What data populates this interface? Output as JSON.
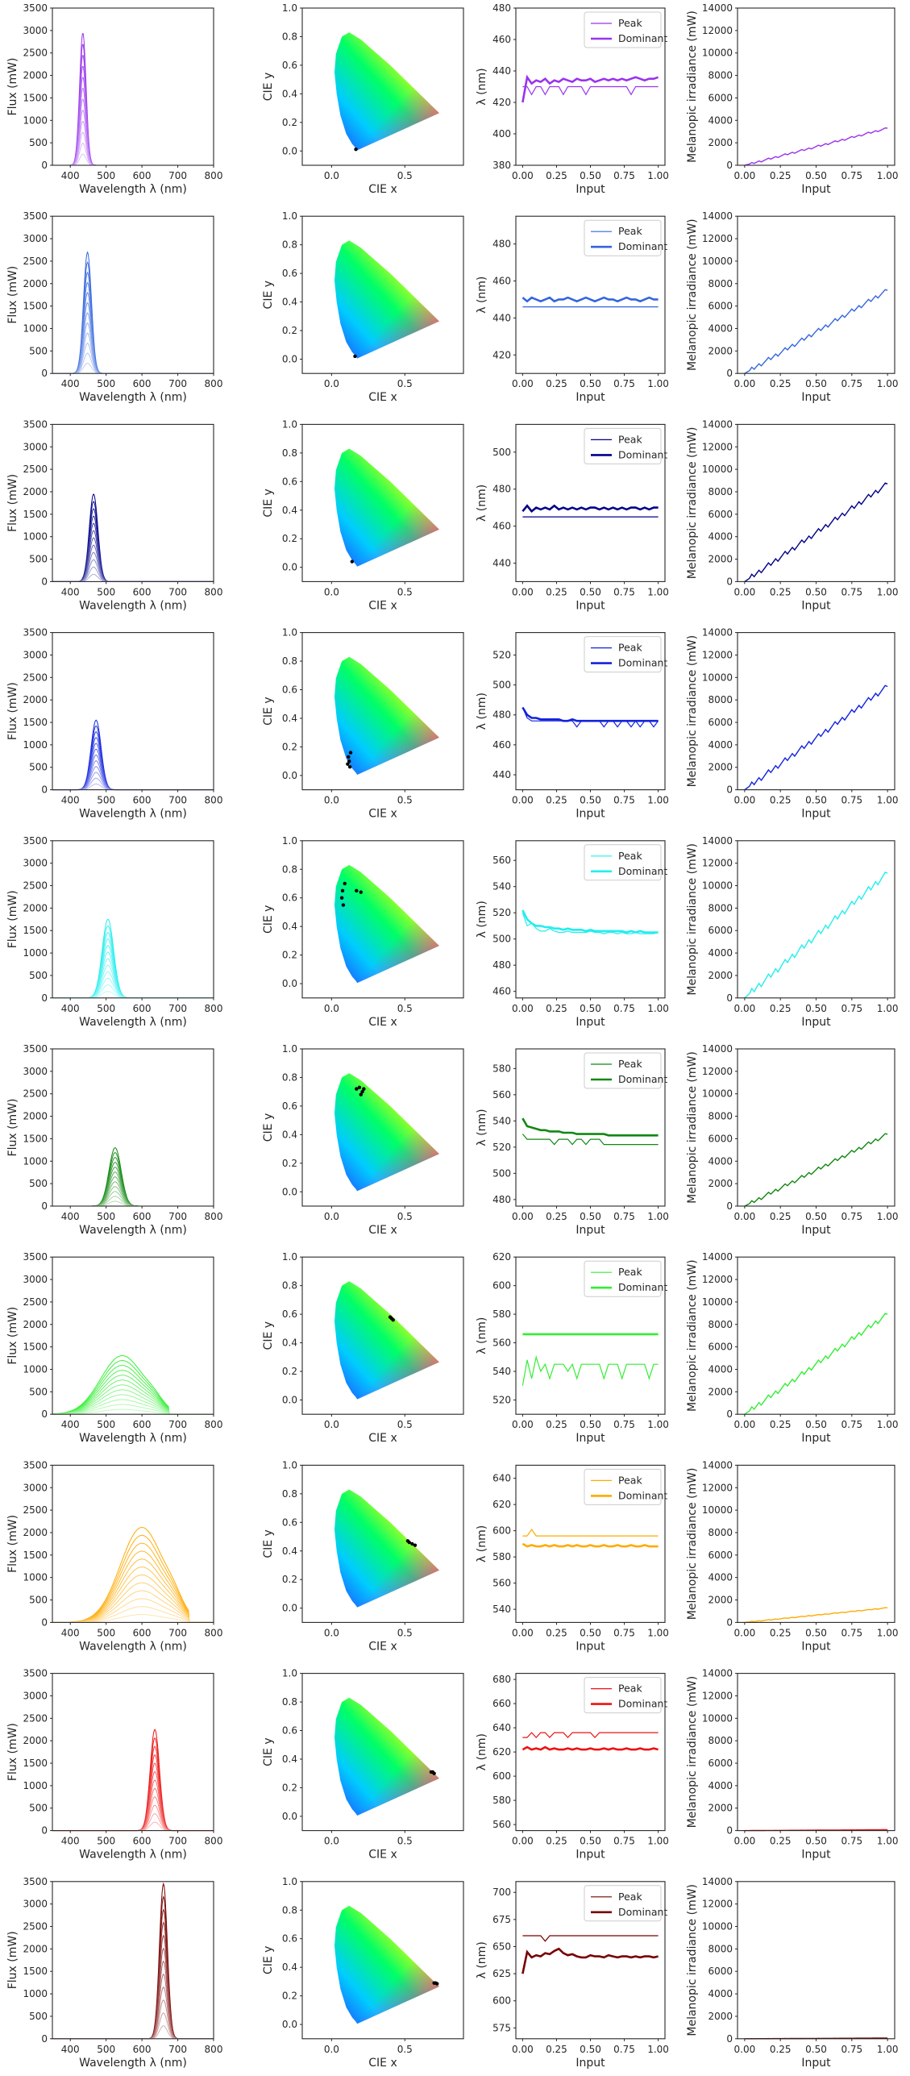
{
  "chart_data": {
    "type": "line",
    "rows": [
      {
        "color": "#9933ee",
        "peak_nm": 435,
        "width_nm": 9,
        "flux_max": 2950,
        "cie": [
          [
            0.166,
            0.012
          ]
        ],
        "peak_series": [
          430,
          430,
          425,
          430,
          430,
          425,
          430,
          430,
          430,
          425,
          430,
          430,
          430,
          430,
          425,
          430,
          430,
          430,
          430,
          430,
          430,
          430,
          430,
          430,
          425,
          430,
          430,
          430,
          430,
          430,
          430
        ],
        "dominant_series": [
          420,
          436,
          432,
          434,
          433,
          435,
          432,
          434,
          433,
          435,
          434,
          433,
          435,
          434,
          434,
          435,
          433,
          434,
          435,
          434,
          435,
          434,
          435,
          434,
          435,
          436,
          435,
          434,
          435,
          435,
          436
        ],
        "mel_end": 3300
      },
      {
        "color": "#3366dd",
        "peak_nm": 448,
        "width_nm": 11,
        "flux_max": 2700,
        "cie": [
          [
            0.16,
            0.02
          ]
        ],
        "peak_series": [
          446,
          446,
          446,
          446,
          446,
          446,
          446,
          446,
          446,
          446,
          446,
          446,
          446,
          446,
          446,
          446,
          446,
          446,
          446,
          446,
          446,
          446,
          446,
          446,
          446,
          446,
          446,
          446,
          446,
          446,
          446
        ],
        "dominant_series": [
          451,
          449,
          451,
          450,
          449,
          450,
          451,
          449,
          450,
          450,
          451,
          450,
          449,
          450,
          451,
          450,
          449,
          450,
          451,
          450,
          450,
          449,
          450,
          451,
          450,
          450,
          449,
          450,
          451,
          450,
          450
        ],
        "mel_end": 7400
      },
      {
        "color": "#000088",
        "peak_nm": 465,
        "width_nm": 12,
        "flux_max": 1950,
        "cie": [
          [
            0.14,
            0.04
          ]
        ],
        "peak_series": [
          465,
          465,
          465,
          465,
          465,
          465,
          465,
          465,
          465,
          465,
          465,
          465,
          465,
          465,
          465,
          465,
          465,
          465,
          465,
          465,
          465,
          465,
          465,
          465,
          465,
          465,
          465,
          465,
          465,
          465,
          465
        ],
        "dominant_series": [
          468,
          471,
          468,
          470,
          469,
          470,
          469,
          471,
          469,
          470,
          469,
          470,
          469,
          470,
          469,
          470,
          470,
          469,
          470,
          469,
          470,
          469,
          470,
          469,
          470,
          470,
          469,
          470,
          469,
          470,
          470
        ],
        "mel_end": 8700
      },
      {
        "color": "#1122dd",
        "peak_nm": 472,
        "width_nm": 14,
        "flux_max": 1550,
        "cie": [
          [
            0.11,
            0.08
          ],
          [
            0.12,
            0.1
          ],
          [
            0.115,
            0.13
          ],
          [
            0.13,
            0.16
          ],
          [
            0.125,
            0.06
          ]
        ],
        "peak_series": [
          485,
          478,
          476,
          476,
          476,
          476,
          476,
          476,
          476,
          476,
          476,
          476,
          472,
          476,
          476,
          476,
          476,
          476,
          472,
          476,
          476,
          472,
          476,
          476,
          472,
          476,
          472,
          476,
          476,
          472,
          476
        ],
        "dominant_series": [
          485,
          480,
          478,
          478,
          477,
          477,
          477,
          477,
          477,
          476,
          476,
          477,
          476,
          476,
          476,
          476,
          476,
          476,
          476,
          476,
          476,
          476,
          476,
          476,
          476,
          476,
          476,
          476,
          476,
          476,
          476
        ],
        "mel_end": 9200
      },
      {
        "color": "#22eeee",
        "peak_nm": 505,
        "width_nm": 16,
        "flux_max": 1750,
        "cie": [
          [
            0.07,
            0.6
          ],
          [
            0.075,
            0.65
          ],
          [
            0.08,
            0.55
          ],
          [
            0.09,
            0.7
          ],
          [
            0.17,
            0.65
          ],
          [
            0.2,
            0.64
          ]
        ],
        "peak_series": [
          520,
          510,
          512,
          508,
          506,
          506,
          508,
          506,
          505,
          505,
          506,
          505,
          505,
          505,
          505,
          506,
          505,
          505,
          504,
          505,
          505,
          504,
          505,
          504,
          504,
          505,
          504,
          504,
          504,
          504,
          505
        ],
        "dominant_series": [
          522,
          515,
          512,
          510,
          510,
          509,
          509,
          508,
          508,
          507,
          508,
          507,
          507,
          507,
          506,
          507,
          506,
          506,
          506,
          506,
          506,
          506,
          506,
          505,
          506,
          505,
          506,
          505,
          505,
          505,
          505
        ],
        "mel_end": 11100
      },
      {
        "color": "#118811",
        "peak_nm": 525,
        "width_nm": 17,
        "flux_max": 1300,
        "cie": [
          [
            0.17,
            0.72
          ],
          [
            0.19,
            0.73
          ],
          [
            0.21,
            0.7
          ],
          [
            0.22,
            0.72
          ],
          [
            0.2,
            0.68
          ]
        ],
        "peak_series": [
          530,
          526,
          526,
          526,
          526,
          526,
          526,
          522,
          526,
          526,
          526,
          522,
          526,
          526,
          522,
          526,
          526,
          526,
          522,
          522,
          522,
          522,
          522,
          522,
          522,
          522,
          522,
          522,
          522,
          522,
          522
        ],
        "dominant_series": [
          542,
          536,
          535,
          534,
          533,
          533,
          532,
          532,
          532,
          531,
          531,
          531,
          530,
          530,
          530,
          530,
          530,
          530,
          530,
          529,
          529,
          529,
          529,
          529,
          529,
          529,
          529,
          529,
          529,
          529,
          529
        ],
        "mel_end": 6400
      },
      {
        "color": "#33ee33",
        "peak_nm": 545,
        "width_nm": 60,
        "flux_max": 1450,
        "cie": [
          [
            0.4,
            0.58
          ],
          [
            0.41,
            0.57
          ],
          [
            0.42,
            0.56
          ]
        ],
        "peak_series": [
          530,
          548,
          535,
          550,
          540,
          545,
          535,
          545,
          545,
          545,
          540,
          545,
          535,
          545,
          545,
          545,
          545,
          545,
          535,
          545,
          545,
          545,
          535,
          545,
          545,
          545,
          545,
          545,
          535,
          545,
          545
        ],
        "dominant_series": [
          566,
          566,
          566,
          566,
          566,
          566,
          566,
          566,
          566,
          566,
          566,
          566,
          566,
          566,
          566,
          566,
          566,
          566,
          566,
          566,
          566,
          566,
          566,
          566,
          566,
          566,
          566,
          566,
          566,
          566,
          566
        ],
        "mel_end": 8900
      },
      {
        "color": "#ffaa00",
        "peak_nm": 600,
        "width_nm": 60,
        "flux_max": 2350,
        "cie": [
          [
            0.53,
            0.46
          ],
          [
            0.55,
            0.45
          ],
          [
            0.57,
            0.44
          ],
          [
            0.52,
            0.47
          ]
        ],
        "peak_series": [
          596,
          596,
          601,
          596,
          596,
          596,
          596,
          596,
          596,
          596,
          596,
          596,
          596,
          596,
          596,
          596,
          596,
          596,
          596,
          596,
          596,
          596,
          596,
          596,
          596,
          596,
          596,
          596,
          596,
          596,
          596
        ],
        "dominant_series": [
          590,
          588,
          589,
          588,
          588,
          589,
          588,
          589,
          588,
          588,
          589,
          588,
          589,
          588,
          588,
          589,
          588,
          588,
          589,
          588,
          588,
          589,
          588,
          588,
          589,
          588,
          588,
          589,
          588,
          588,
          588
        ],
        "mel_end": 1300
      },
      {
        "color": "#ee1111",
        "peak_nm": 636,
        "width_nm": 13,
        "flux_max": 2250,
        "cie": [
          [
            0.69,
            0.31
          ],
          [
            0.7,
            0.3
          ],
          [
            0.68,
            0.31
          ]
        ],
        "peak_series": [
          632,
          632,
          636,
          632,
          636,
          636,
          632,
          636,
          636,
          636,
          632,
          636,
          636,
          636,
          636,
          636,
          632,
          636,
          636,
          636,
          636,
          636,
          636,
          636,
          636,
          636,
          636,
          636,
          636,
          636,
          636
        ],
        "dominant_series": [
          622,
          624,
          622,
          623,
          622,
          624,
          622,
          623,
          622,
          622,
          623,
          622,
          623,
          622,
          622,
          623,
          622,
          622,
          623,
          622,
          623,
          622,
          622,
          623,
          622,
          622,
          623,
          622,
          622,
          623,
          622
        ],
        "mel_end": 80
      },
      {
        "color": "#770000",
        "peak_nm": 660,
        "width_nm": 11,
        "flux_max": 3450,
        "cie": [
          [
            0.71,
            0.29
          ],
          [
            0.72,
            0.285
          ],
          [
            0.7,
            0.29
          ]
        ],
        "peak_series": [
          660,
          660,
          660,
          660,
          660,
          655,
          660,
          660,
          660,
          660,
          660,
          660,
          660,
          660,
          660,
          660,
          660,
          660,
          660,
          660,
          660,
          660,
          660,
          660,
          660,
          660,
          660,
          660,
          660,
          660,
          660
        ],
        "dominant_series": [
          625,
          645,
          640,
          642,
          641,
          644,
          643,
          646,
          648,
          644,
          642,
          643,
          641,
          640,
          640,
          642,
          641,
          641,
          640,
          642,
          641,
          640,
          641,
          641,
          640,
          641,
          640,
          641,
          641,
          640,
          641
        ],
        "mel_end": 60
      }
    ],
    "col1": {
      "xlabel": "Wavelength λ (nm)",
      "ylabel": "Flux (mW)",
      "xlim": [
        350,
        800
      ],
      "ylim": [
        0,
        3500
      ],
      "xticks": [
        "400",
        "500",
        "600",
        "700",
        "800"
      ],
      "yticks": [
        "0",
        "500",
        "1000",
        "1500",
        "2000",
        "2500",
        "3000",
        "3500"
      ]
    },
    "col2": {
      "xlabel": "CIE x",
      "ylabel": "CIE y",
      "xlim": [
        -0.2,
        0.9
      ],
      "ylim": [
        -0.1,
        1.0
      ],
      "xticks": [
        "0.0",
        "0.5"
      ],
      "yticks": [
        "0.0",
        "0.2",
        "0.4",
        "0.6",
        "0.8",
        "1.0"
      ]
    },
    "col3": {
      "xlabel": "Input",
      "ylabel": "λ (nm)",
      "xticks": [
        "0.00",
        "0.25",
        "0.50",
        "0.75",
        "1.00"
      ],
      "legend": [
        "Peak",
        "Dominant"
      ],
      "ylims": [
        [
          380,
          480
        ],
        [
          410,
          495
        ],
        [
          430,
          515
        ],
        [
          430,
          535
        ],
        [
          455,
          575
        ],
        [
          475,
          595
        ],
        [
          510,
          620
        ],
        [
          530,
          650
        ],
        [
          555,
          685
        ],
        [
          565,
          710
        ]
      ],
      "yticks": [
        [
          "380",
          "400",
          "420",
          "440",
          "460",
          "480"
        ],
        [
          "420",
          "440",
          "460",
          "480"
        ],
        [
          "440",
          "460",
          "480",
          "500"
        ],
        [
          "440",
          "460",
          "480",
          "500",
          "520"
        ],
        [
          "460",
          "480",
          "500",
          "520",
          "540",
          "560"
        ],
        [
          "480",
          "500",
          "520",
          "540",
          "560",
          "580"
        ],
        [
          "520",
          "540",
          "560",
          "580",
          "600",
          "620"
        ],
        [
          "540",
          "560",
          "580",
          "600",
          "620",
          "640"
        ],
        [
          "560",
          "580",
          "600",
          "620",
          "640",
          "660",
          "680"
        ],
        [
          "575",
          "600",
          "625",
          "650",
          "675",
          "700"
        ]
      ]
    },
    "col4": {
      "xlabel": "Input",
      "ylabel": "Melanopic irradiance (mW)",
      "xticks": [
        "0.00",
        "0.25",
        "0.50",
        "0.75",
        "1.00"
      ],
      "ylim": [
        0,
        14000
      ],
      "yticks": [
        "0",
        "2000",
        "4000",
        "6000",
        "8000",
        "10000",
        "12000",
        "14000"
      ]
    }
  }
}
